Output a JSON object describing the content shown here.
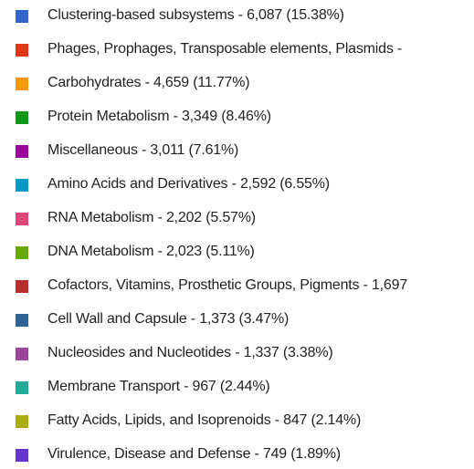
{
  "legend": {
    "items": [
      {
        "label": "Clustering-based subsystems - 6,087 (15.38%)",
        "color": "#3366cc"
      },
      {
        "label": "Phages, Prophages, Transposable elements, Plasmids - ",
        "color": "#dc3912"
      },
      {
        "label": "Carbohydrates - 4,659 (11.77%)",
        "color": "#ff9900"
      },
      {
        "label": "Protein Metabolism - 3,349 (8.46%)",
        "color": "#109618"
      },
      {
        "label": "Miscellaneous - 3,011 (7.61%)",
        "color": "#990099"
      },
      {
        "label": "Amino Acids and Derivatives - 2,592 (6.55%)",
        "color": "#0099c6"
      },
      {
        "label": "RNA Metabolism - 2,202 (5.57%)",
        "color": "#dd4477"
      },
      {
        "label": "DNA Metabolism - 2,023 (5.11%)",
        "color": "#66aa00"
      },
      {
        "label": "Cofactors, Vitamins, Prosthetic Groups, Pigments - 1,697",
        "color": "#b82e2e"
      },
      {
        "label": "Cell Wall and Capsule - 1,373 (3.47%)",
        "color": "#316395"
      },
      {
        "label": "Nucleosides and Nucleotides - 1,337 (3.38%)",
        "color": "#994499"
      },
      {
        "label": "Membrane Transport - 967 (2.44%)",
        "color": "#22aa99"
      },
      {
        "label": "Fatty Acids, Lipids, and Isoprenoids - 847 (2.14%)",
        "color": "#aaaa11"
      },
      {
        "label": "Virulence, Disease and Defense - 749 (1.89%)",
        "color": "#6633cc"
      }
    ]
  }
}
